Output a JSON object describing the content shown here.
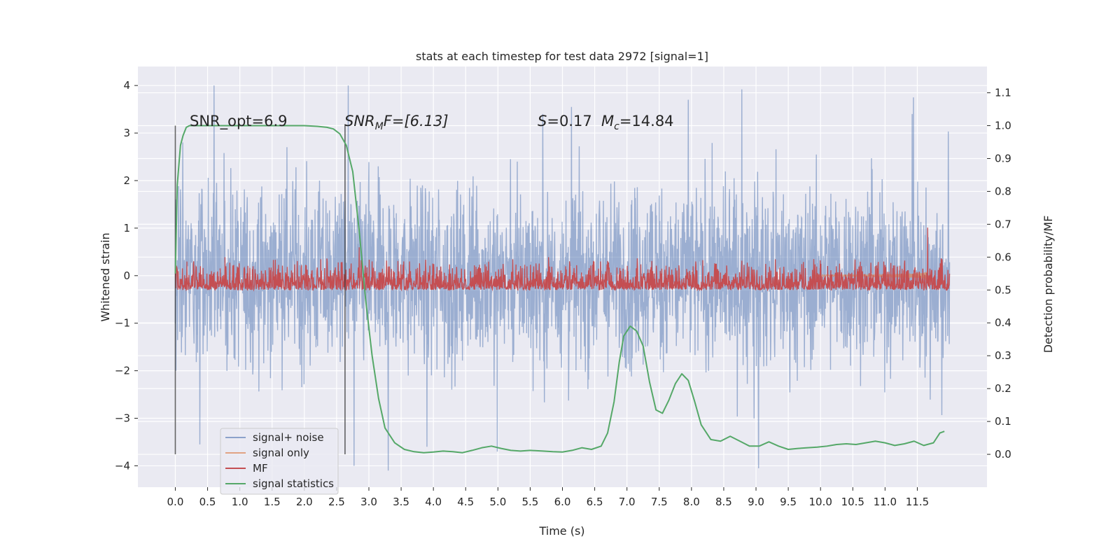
{
  "chart_data": {
    "type": "line",
    "title": "stats at each timestep for test data 2972 [signal=1]",
    "xlabel": "Time (s)",
    "ylabel": "Whitened strain",
    "y2label": "Detection probability/MF",
    "xlim": [
      -0.58,
      12.58
    ],
    "ylim": [
      -4.45,
      4.4
    ],
    "y2lim": [
      -0.1,
      1.18
    ],
    "xticks": [
      0.0,
      0.5,
      1.0,
      1.5,
      2.0,
      2.5,
      3.0,
      3.5,
      4.0,
      4.5,
      5.0,
      5.5,
      6.0,
      6.5,
      7.0,
      7.5,
      8.0,
      8.5,
      9.0,
      9.5,
      10.0,
      10.5,
      11.0,
      11.5
    ],
    "xtick_labels": [
      "0.0",
      "0.5",
      "1.0",
      "1.5",
      "2.0",
      "2.5",
      "3.0",
      "3.5",
      "4.0",
      "4.5",
      "5.0",
      "5.5",
      "6.0",
      "6.5",
      "7.0",
      "7.5",
      "8.0",
      "8.5",
      "9.0",
      "9.5",
      "10.0",
      "10.5",
      "11.0",
      "11.5"
    ],
    "yticks": [
      -4,
      -3,
      -2,
      -1,
      0,
      1,
      2,
      3,
      4
    ],
    "ytick_labels": [
      "−4",
      "−3",
      "−2",
      "−1",
      "0",
      "1",
      "2",
      "3",
      "4"
    ],
    "y2ticks": [
      0.0,
      0.1,
      0.2,
      0.3,
      0.4,
      0.5,
      0.6,
      0.7,
      0.8,
      0.9,
      1.0,
      1.1
    ],
    "y2tick_labels": [
      "0.0",
      "0.1",
      "0.2",
      "0.3",
      "0.4",
      "0.5",
      "0.6",
      "0.7",
      "0.8",
      "0.9",
      "1.0",
      "1.1"
    ],
    "grid": true,
    "legend_position": "lower-left",
    "annotations": {
      "snr_opt": "SNR_opt=6.9",
      "snr_mf": "SNR",
      "snr_mf_sub": "M",
      "snr_mf_rest": "F=[6.13]",
      "s_label": "S",
      "s_value": "=0.17",
      "mc_label": "M",
      "mc_sub": "c",
      "mc_value": "=14.84"
    },
    "vlines": [
      {
        "x": 0.0,
        "y2": [
          0.0,
          1.0
        ]
      },
      {
        "x": 2.63,
        "y2": [
          0.0,
          1.0
        ]
      }
    ],
    "series": [
      {
        "name": "signal+ noise",
        "color": "#4c72b0",
        "opacity": 0.5,
        "axis": "left",
        "kind": "noise",
        "time_range": [
          0.0,
          12.0
        ],
        "envelope_typical": [
          -2.0,
          2.5
        ],
        "peaks": [
          {
            "x": 0.6,
            "y": 4.0
          },
          {
            "x": 2.68,
            "y": 4.0
          },
          {
            "x": 0.38,
            "y": -3.55
          },
          {
            "x": 2.77,
            "y": -4.0
          },
          {
            "x": 3.3,
            "y": -4.1
          },
          {
            "x": 8.78,
            "y": 3.92
          },
          {
            "x": 9.04,
            "y": -4.05
          },
          {
            "x": 7.95,
            "y": 3.7
          },
          {
            "x": 4.99,
            "y": -3.7
          },
          {
            "x": 6.14,
            "y": 3.55
          },
          {
            "x": 11.44,
            "y": 3.75
          },
          {
            "x": 3.9,
            "y": -3.6
          }
        ]
      },
      {
        "name": "signal only",
        "color": "#dd8452",
        "opacity": 0.7,
        "axis": "left",
        "kind": "chirp",
        "time_range": [
          9.9,
          11.65
        ],
        "peak": {
          "x": 11.65,
          "y_max": 1.5,
          "y_min": -1.35
        }
      },
      {
        "name": "MF",
        "color": "#c44e52",
        "axis": "right",
        "kind": "noise",
        "time_range": [
          0.0,
          12.0
        ],
        "band_y2": [
          0.5,
          0.56
        ],
        "spikes": [
          {
            "x": 2.85,
            "y2": 0.63
          },
          {
            "x": 11.66,
            "y2": 0.69
          }
        ]
      },
      {
        "name": "signal statistics",
        "color": "#55a868",
        "axis": "right",
        "kind": "line",
        "x": [
          0.0,
          0.03,
          0.08,
          0.12,
          0.17,
          0.22,
          0.3,
          0.5,
          1.0,
          1.5,
          2.0,
          2.2,
          2.35,
          2.45,
          2.55,
          2.65,
          2.75,
          2.85,
          2.95,
          3.05,
          3.15,
          3.25,
          3.4,
          3.55,
          3.7,
          3.85,
          4.0,
          4.15,
          4.3,
          4.45,
          4.6,
          4.75,
          4.9,
          5.05,
          5.2,
          5.35,
          5.5,
          5.7,
          5.85,
          6.0,
          6.15,
          6.3,
          6.45,
          6.6,
          6.7,
          6.8,
          6.88,
          6.95,
          7.05,
          7.15,
          7.25,
          7.35,
          7.45,
          7.55,
          7.65,
          7.75,
          7.85,
          7.95,
          8.05,
          8.15,
          8.3,
          8.45,
          8.6,
          8.75,
          8.9,
          9.05,
          9.2,
          9.35,
          9.5,
          9.65,
          9.8,
          9.95,
          10.1,
          10.25,
          10.4,
          10.55,
          10.7,
          10.85,
          11.0,
          11.15,
          11.3,
          11.45,
          11.6,
          11.75,
          11.85,
          11.92
        ],
        "values": [
          0.55,
          0.82,
          0.94,
          0.97,
          0.995,
          1.0,
          1.0,
          1.0,
          1.0,
          1.0,
          1.0,
          0.998,
          0.995,
          0.99,
          0.975,
          0.94,
          0.86,
          0.68,
          0.47,
          0.3,
          0.17,
          0.08,
          0.035,
          0.015,
          0.008,
          0.005,
          0.007,
          0.01,
          0.008,
          0.005,
          0.012,
          0.02,
          0.025,
          0.018,
          0.012,
          0.01,
          0.012,
          0.01,
          0.008,
          0.007,
          0.012,
          0.02,
          0.015,
          0.025,
          0.065,
          0.16,
          0.28,
          0.36,
          0.39,
          0.375,
          0.33,
          0.22,
          0.135,
          0.125,
          0.165,
          0.215,
          0.245,
          0.225,
          0.16,
          0.09,
          0.045,
          0.04,
          0.055,
          0.04,
          0.025,
          0.025,
          0.038,
          0.025,
          0.015,
          0.018,
          0.02,
          0.022,
          0.025,
          0.03,
          0.032,
          0.03,
          0.035,
          0.04,
          0.035,
          0.027,
          0.032,
          0.04,
          0.027,
          0.035,
          0.065,
          0.07
        ]
      }
    ]
  }
}
